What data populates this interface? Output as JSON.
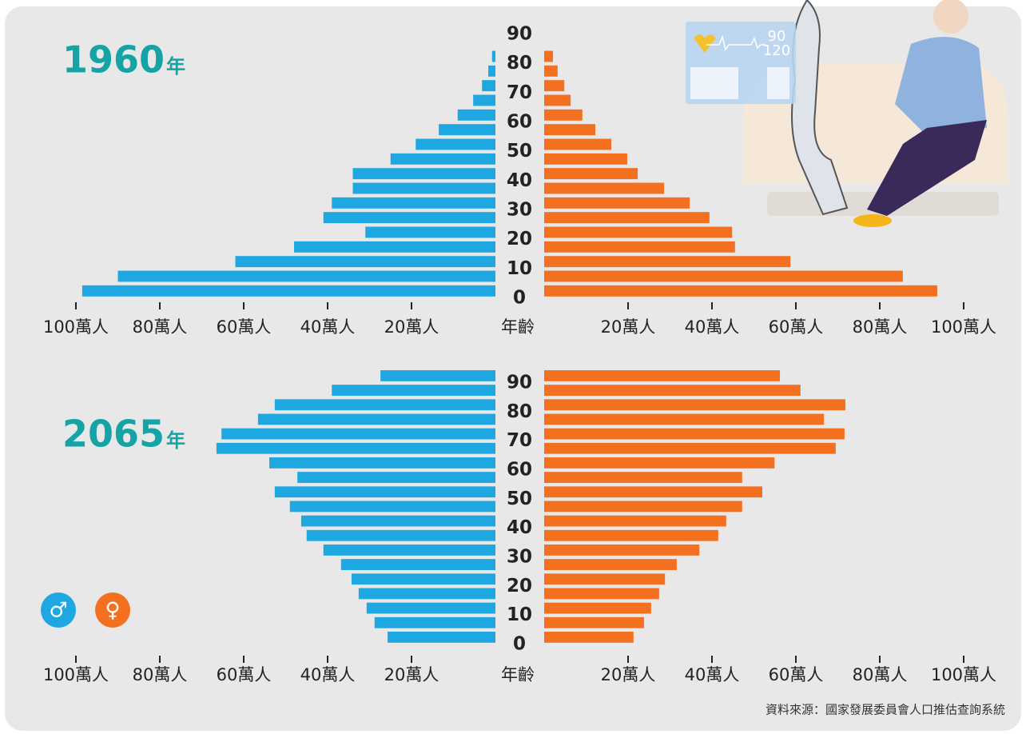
{
  "chart_data": [
    {
      "type": "pyramid",
      "title": "1960",
      "title_unit": "年",
      "age_label": "年齡",
      "ages": [
        0,
        5,
        10,
        15,
        20,
        25,
        30,
        35,
        40,
        45,
        50,
        55,
        60,
        65,
        70,
        75,
        80
      ],
      "series": [
        {
          "color": "#1ea7e1",
          "values": [
            98.5,
            90,
            62,
            48,
            31,
            41,
            39,
            34,
            34,
            25,
            19,
            13.5,
            9,
            5.3,
            3.2,
            1.7,
            0.8
          ]
        },
        {
          "color": "#f37021",
          "values": [
            93.7,
            85.5,
            58.7,
            45.5,
            44.8,
            39.4,
            34.7,
            28.6,
            22.3,
            19.8,
            16,
            12.2,
            9.1,
            6.3,
            4.8,
            3.2,
            2.1
          ]
        }
      ],
      "xlim": [
        0,
        100
      ],
      "xticks": [
        {
          "value": 20,
          "label": "20萬人"
        },
        {
          "value": 40,
          "label": "40萬人"
        },
        {
          "value": 60,
          "label": "60萬人"
        },
        {
          "value": 80,
          "label": "80萬人"
        },
        {
          "value": 100,
          "label": "100萬人"
        }
      ],
      "ylim": [
        0,
        90
      ],
      "yticks": [
        0,
        10,
        20,
        30,
        40,
        50,
        60,
        70,
        80,
        90
      ]
    },
    {
      "type": "pyramid",
      "title": "2065",
      "title_unit": "年",
      "age_label": "年齡",
      "ages": [
        0,
        5,
        10,
        15,
        20,
        25,
        30,
        35,
        40,
        45,
        50,
        55,
        60,
        65,
        70,
        75,
        80,
        85,
        90
      ],
      "series": [
        {
          "name": "♂",
          "color": "#1ea7e1",
          "values": [
            25.7,
            28.8,
            30.7,
            32.6,
            34.3,
            36.8,
            41,
            45,
            46.3,
            49,
            52.6,
            47.2,
            53.9,
            66.5,
            65.3,
            56.6,
            52.6,
            39,
            27.4
          ]
        },
        {
          "name": "♀",
          "color": "#f37021",
          "values": [
            21.3,
            23.8,
            25.5,
            27.4,
            28.8,
            31.6,
            37,
            41.5,
            43.4,
            47.2,
            52,
            47.2,
            54.9,
            69.5,
            71.6,
            66.7,
            71.8,
            61.1,
            56.2
          ]
        }
      ],
      "xlim": [
        0,
        100
      ],
      "xticks": [
        {
          "value": 20,
          "label": "20萬人"
        },
        {
          "value": 40,
          "label": "40萬人"
        },
        {
          "value": 60,
          "label": "60萬人"
        },
        {
          "value": 80,
          "label": "80萬人"
        },
        {
          "value": 100,
          "label": "100萬人"
        }
      ],
      "ylim": [
        0,
        90
      ],
      "yticks": [
        0,
        10,
        20,
        30,
        40,
        50,
        60,
        70,
        80,
        90
      ]
    }
  ],
  "illustration": {
    "monitor": [
      "90",
      "120"
    ]
  },
  "source": "資料來源：國家發展委員會人口推估查詢系統"
}
